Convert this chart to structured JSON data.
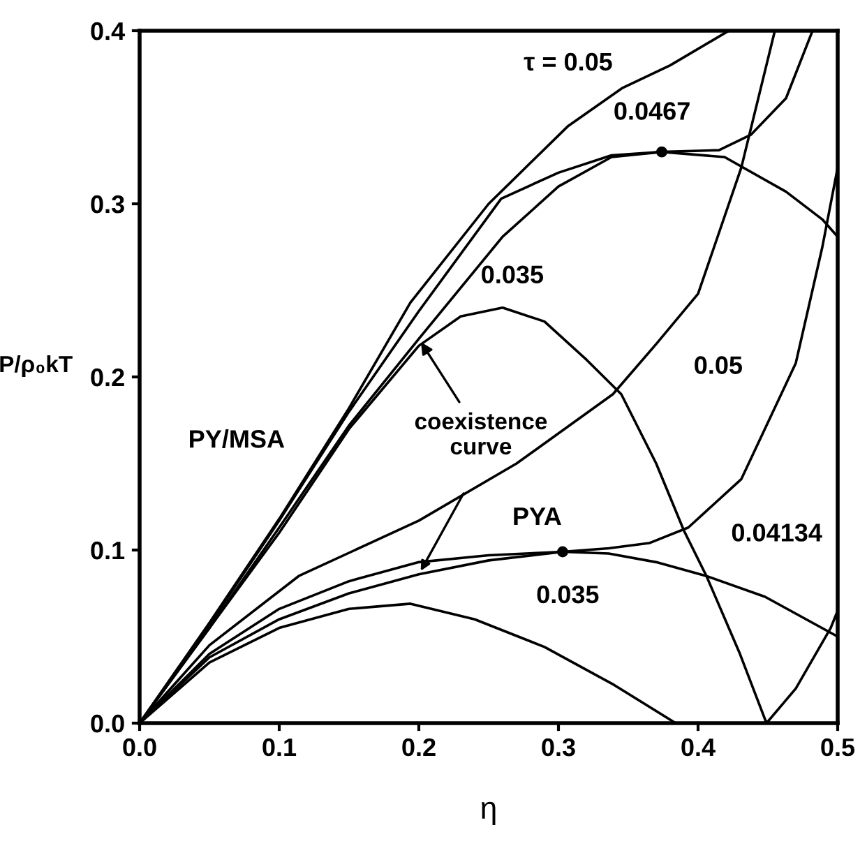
{
  "chart_data": {
    "type": "line",
    "xlabel": "η",
    "ylabel": "P/ρ₀kT",
    "xlim": [
      0,
      0.5
    ],
    "ylim": [
      0,
      0.4
    ],
    "xticks": [
      {
        "value": 0,
        "label": "0.0"
      },
      0.1,
      0.2,
      0.3,
      0.4,
      0.5
    ],
    "yticks": [
      {
        "value": 0,
        "label": "0.0"
      },
      0.1,
      0.2,
      0.3,
      0.4
    ],
    "grid": false,
    "marker": "none",
    "line_style": "solid",
    "series": [
      {
        "color": "#000000",
        "x": [
          0,
          0.05,
          0.1,
          0.15,
          0.194,
          0.25,
          0.307,
          0.346,
          0.38,
          0.422
        ],
        "values": [
          0,
          0.058,
          0.118,
          0.182,
          0.243,
          0.3,
          0.345,
          0.367,
          0.38,
          0.4
        ]
      },
      {
        "color": "#000000",
        "x": [
          0,
          0.05,
          0.1,
          0.15,
          0.2,
          0.259,
          0.3,
          0.338,
          0.374,
          0.415,
          0.438,
          0.463,
          0.482
        ],
        "values": [
          0,
          0.057,
          0.117,
          0.18,
          0.238,
          0.303,
          0.318,
          0.328,
          0.33,
          0.331,
          0.34,
          0.361,
          0.4
        ]
      },
      {
        "color": "#000000",
        "x": [
          0,
          0.05,
          0.1,
          0.15,
          0.2,
          0.26,
          0.3,
          0.338,
          0.374,
          0.419,
          0.463,
          0.489,
          0.5
        ],
        "values": [
          0,
          0.055,
          0.113,
          0.172,
          0.222,
          0.281,
          0.31,
          0.327,
          0.33,
          0.327,
          0.307,
          0.291,
          0.281
        ]
      },
      {
        "color": "#000000",
        "x": [
          0,
          0.05,
          0.1,
          0.15,
          0.2,
          0.23,
          0.26,
          0.29,
          0.32,
          0.345,
          0.37,
          0.39,
          0.406,
          0.43,
          0.449,
          0.47,
          0.495,
          0.5
        ],
        "values": [
          0,
          0.055,
          0.11,
          0.17,
          0.218,
          0.235,
          0.24,
          0.232,
          0.21,
          0.19,
          0.15,
          0.111,
          0.085,
          0.04,
          0,
          0.02,
          0.055,
          0.065
        ]
      },
      {
        "color": "#000000",
        "x": [
          0,
          0.05,
          0.114,
          0.2,
          0.27,
          0.339,
          0.37,
          0.4,
          0.431,
          0.455
        ],
        "values": [
          0,
          0.045,
          0.085,
          0.117,
          0.15,
          0.19,
          0.219,
          0.248,
          0.321,
          0.4
        ]
      },
      {
        "color": "#000000",
        "x": [
          0,
          0.05,
          0.1,
          0.15,
          0.2,
          0.25,
          0.303,
          0.336,
          0.365,
          0.393,
          0.431,
          0.47,
          0.489,
          0.5
        ],
        "values": [
          0,
          0.04,
          0.066,
          0.082,
          0.093,
          0.097,
          0.099,
          0.101,
          0.104,
          0.113,
          0.141,
          0.208,
          0.275,
          0.321
        ]
      },
      {
        "color": "#000000",
        "x": [
          0,
          0.05,
          0.1,
          0.15,
          0.2,
          0.25,
          0.303,
          0.336,
          0.37,
          0.406,
          0.448,
          0.5
        ],
        "values": [
          0,
          0.038,
          0.06,
          0.075,
          0.086,
          0.094,
          0.099,
          0.098,
          0.093,
          0.085,
          0.073,
          0.05
        ]
      },
      {
        "color": "#000000",
        "x": [
          0,
          0.05,
          0.1,
          0.15,
          0.194,
          0.24,
          0.29,
          0.34,
          0.384
        ],
        "values": [
          0,
          0.035,
          0.055,
          0.066,
          0.069,
          0.06,
          0.044,
          0.022,
          0
        ]
      },
      {
        "type": "scatter",
        "marker": "circle",
        "color": "#000000",
        "x": [
          0.374,
          0.303
        ],
        "values": [
          0.33,
          0.099
        ]
      }
    ],
    "annotations": [
      {
        "text": "τ = 0.05",
        "x": 0.307,
        "y": 0.345
      },
      {
        "text": "0.0467",
        "x": 0.374,
        "y": 0.33
      },
      {
        "text": "0.035",
        "x": 0.26,
        "y": 0.24
      },
      {
        "text": "0.05",
        "x": 0.37,
        "y": 0.219
      },
      {
        "text": "0.04134",
        "x": 0.448,
        "y": 0.073
      },
      {
        "text": "0.035",
        "x": 0.29,
        "y": 0.044
      },
      {
        "text": "PY/MSA",
        "x": 0.1,
        "y": 0.117
      },
      {
        "text": "PYA",
        "x": 0.25,
        "y": 0.097
      },
      {
        "text": "coexistence curve",
        "x": 0.2,
        "y": 0.222
      }
    ]
  }
}
